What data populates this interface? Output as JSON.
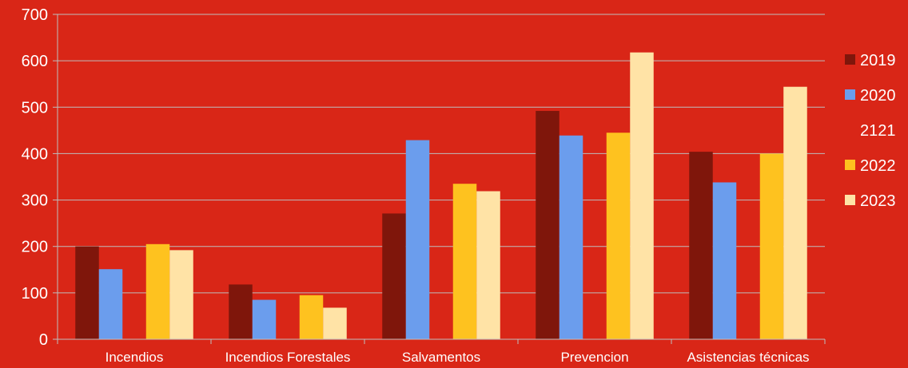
{
  "chart_data": {
    "type": "bar",
    "categories": [
      "Incendios",
      "Incendios Forestales",
      "Salvamentos",
      "Prevencion",
      "Asistencias técnicas"
    ],
    "series": [
      {
        "name": "2019",
        "color": "#7f160b",
        "values": [
          200,
          118,
          271,
          492,
          404
        ]
      },
      {
        "name": "2020",
        "color": "#6b9ded",
        "values": [
          151,
          85,
          429,
          439,
          338
        ]
      },
      {
        "name": "2121",
        "color": "#d92617",
        "values": [
          0,
          0,
          0,
          0,
          0
        ]
      },
      {
        "name": "2022",
        "color": "#fec21f",
        "values": [
          205,
          95,
          335,
          445,
          400
        ]
      },
      {
        "name": "2023",
        "color": "#ffe3a6",
        "values": [
          192,
          68,
          319,
          618,
          544
        ]
      }
    ],
    "yticks": [
      0,
      100,
      200,
      300,
      400,
      500,
      600,
      700
    ],
    "ylim": [
      0,
      700
    ],
    "grid": true,
    "legend": "right",
    "colors": {
      "background": "#d92617",
      "gridline": "#bdbdbd",
      "text": "#ffffff"
    }
  }
}
